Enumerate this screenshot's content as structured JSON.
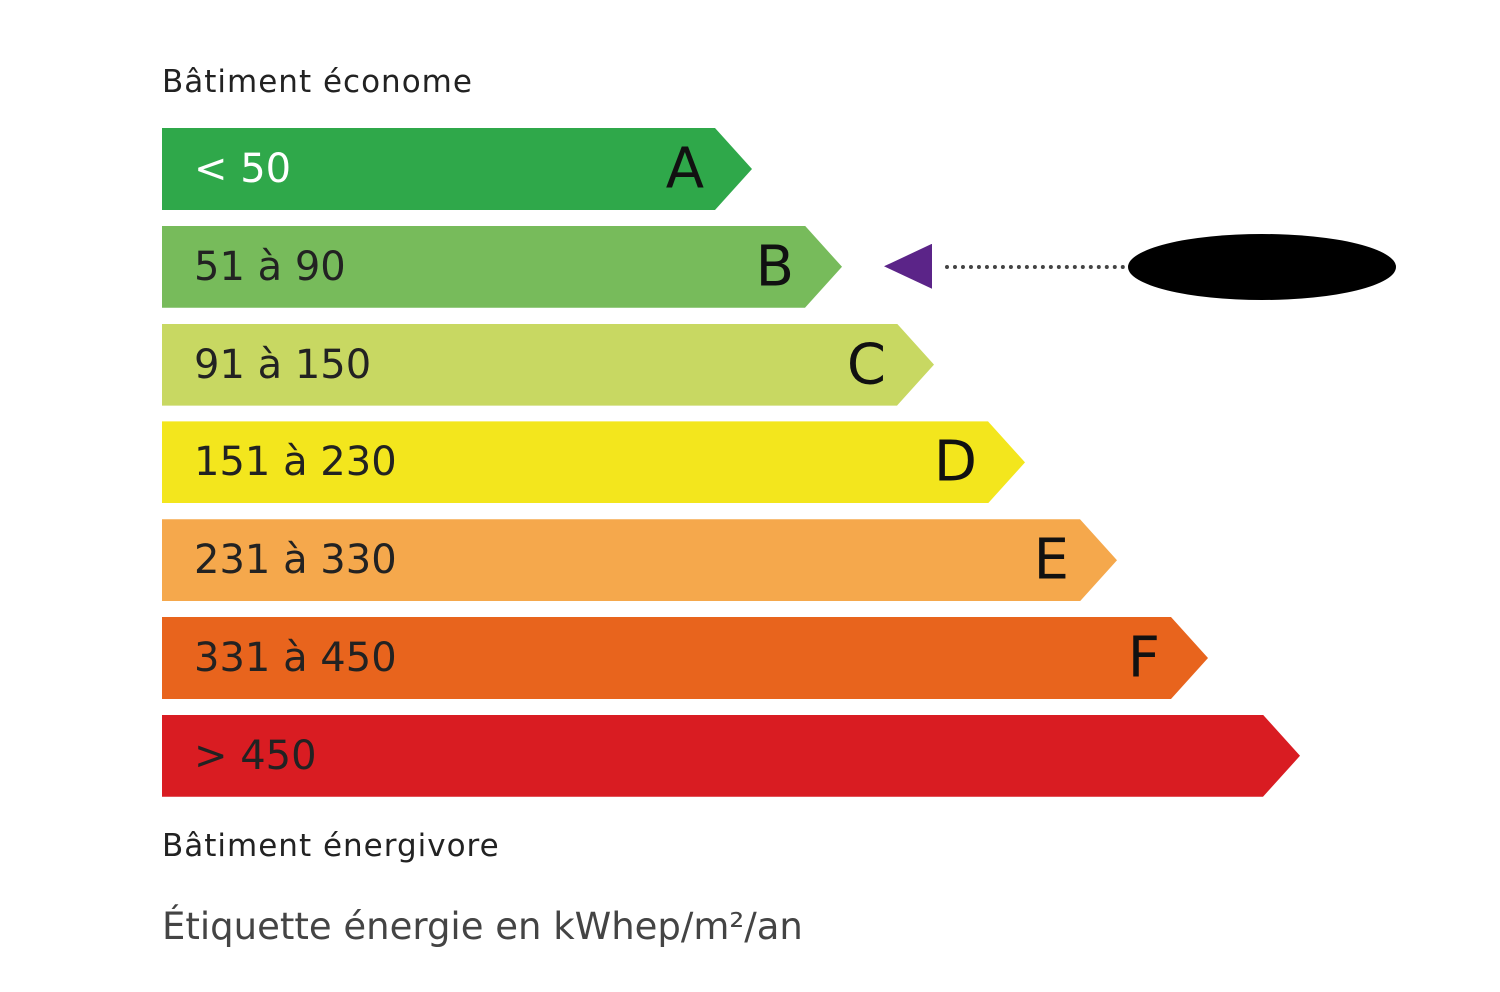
{
  "top_label": "Bâtiment économe",
  "bottom_label": "Bâtiment énergivore",
  "unit_caption": "Étiquette énergie en kWhep/m²/an",
  "classes": [
    {
      "letter": "A",
      "range": "< 50",
      "color": "#2fa84a",
      "text_color": "#ffffff"
    },
    {
      "letter": "B",
      "range": "51 à 90",
      "color": "#77bb5b",
      "text_color": "#222222"
    },
    {
      "letter": "C",
      "range": "91 à 150",
      "color": "#c8d862",
      "text_color": "#222222"
    },
    {
      "letter": "D",
      "range": "151 à 230",
      "color": "#f3e61d",
      "text_color": "#222222"
    },
    {
      "letter": "E",
      "range": "231 à 330",
      "color": "#f5a84c",
      "text_color": "#222222"
    },
    {
      "letter": "F",
      "range": "331 à 450",
      "color": "#e8641d",
      "text_color": "#222222"
    },
    {
      "letter": "",
      "range": "> 450",
      "color": "#d91c22",
      "text_color": "#222222"
    }
  ],
  "indicator": {
    "class": "B",
    "color": "#5b2488",
    "value_redacted": true
  }
}
